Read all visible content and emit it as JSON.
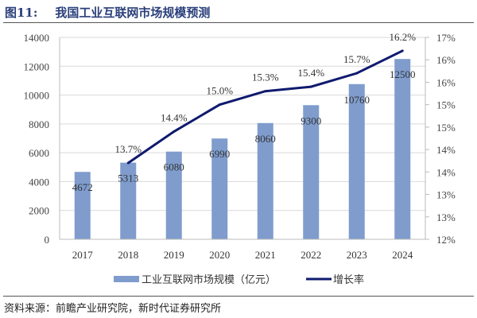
{
  "title": {
    "number": "图11:",
    "text": "我国工业互联网市场规模预测"
  },
  "source": "资料来源：前瞻产业研究院，新时代证券研究所",
  "chart_data": {
    "type": "bar+line",
    "categories": [
      "2017",
      "2018",
      "2019",
      "2020",
      "2021",
      "2022",
      "2023",
      "2024"
    ],
    "series": [
      {
        "name": "工业互联网市场规模（亿元）",
        "type": "bar",
        "axis": "left",
        "color": "#7f9ccd",
        "values": [
          4672,
          5313,
          6080,
          6990,
          8060,
          9300,
          10760,
          12500
        ],
        "labels": [
          "4672",
          "5313",
          "6080",
          "6990",
          "8060",
          "9300",
          "10760",
          "12500"
        ]
      },
      {
        "name": "增长率",
        "type": "line",
        "axis": "right",
        "color": "#0f1a6e",
        "values": [
          null,
          13.7,
          14.4,
          15.0,
          15.3,
          15.4,
          15.7,
          16.2
        ],
        "labels": [
          "",
          "13.7%",
          "14.4%",
          "15.0%",
          "15.3%",
          "15.4%",
          "15.7%",
          "16.2%"
        ]
      }
    ],
    "left_axis": {
      "range": [
        0,
        14000
      ],
      "ticks": [
        "0",
        "2000",
        "4000",
        "6000",
        "8000",
        "10000",
        "12000",
        "14000"
      ]
    },
    "right_axis": {
      "range": [
        12,
        16.5
      ],
      "ticks": [
        "12%",
        "13%",
        "13%",
        "14%",
        "14%",
        "15%",
        "15%",
        "16%",
        "16%",
        "17%"
      ]
    },
    "grid": true,
    "legend": "bottom"
  }
}
